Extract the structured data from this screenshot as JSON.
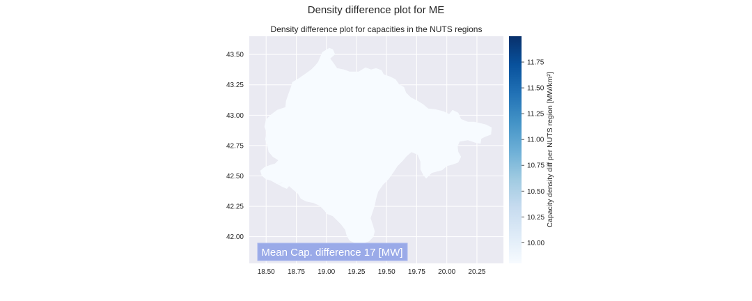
{
  "figure": {
    "suptitle": "Density difference plot for ME",
    "subtitle": "Density difference plot for capacities in the NUTS regions"
  },
  "annotation": {
    "text": "Mean Cap. difference 17 [MW]"
  },
  "colorbar": {
    "label": "Capacity density diff per NUTS region [MW/km²]",
    "colormap": "Blues",
    "range": [
      9.8,
      12.0
    ],
    "ticks": [
      "10.00",
      "10.25",
      "10.50",
      "10.75",
      "11.00",
      "11.25",
      "11.50",
      "11.75"
    ],
    "tick_values": [
      10.0,
      10.25,
      10.5,
      10.75,
      11.0,
      11.25,
      11.5,
      11.75
    ],
    "low_color": "#f7fbff",
    "high_color": "#08306b"
  },
  "chart_data": {
    "type": "map",
    "title": "Density difference plot for capacities in the NUTS regions",
    "xlim": [
      18.36,
      20.47
    ],
    "ylim": [
      41.78,
      43.65
    ],
    "x_ticks": [
      "18.50",
      "18.75",
      "19.00",
      "19.25",
      "19.50",
      "19.75",
      "20.00",
      "20.25"
    ],
    "x_tick_values": [
      18.5,
      18.75,
      19.0,
      19.25,
      19.5,
      19.75,
      20.0,
      20.25
    ],
    "y_ticks": [
      "42.00",
      "42.25",
      "42.50",
      "42.75",
      "43.00",
      "43.25",
      "43.50"
    ],
    "y_tick_values": [
      42.0,
      42.25,
      42.5,
      42.75,
      43.0,
      43.25,
      43.5
    ],
    "grid": true,
    "background": "#eaeaf2",
    "regions": [
      {
        "value": 9.8,
        "fill": "#f7fbff"
      }
    ]
  }
}
